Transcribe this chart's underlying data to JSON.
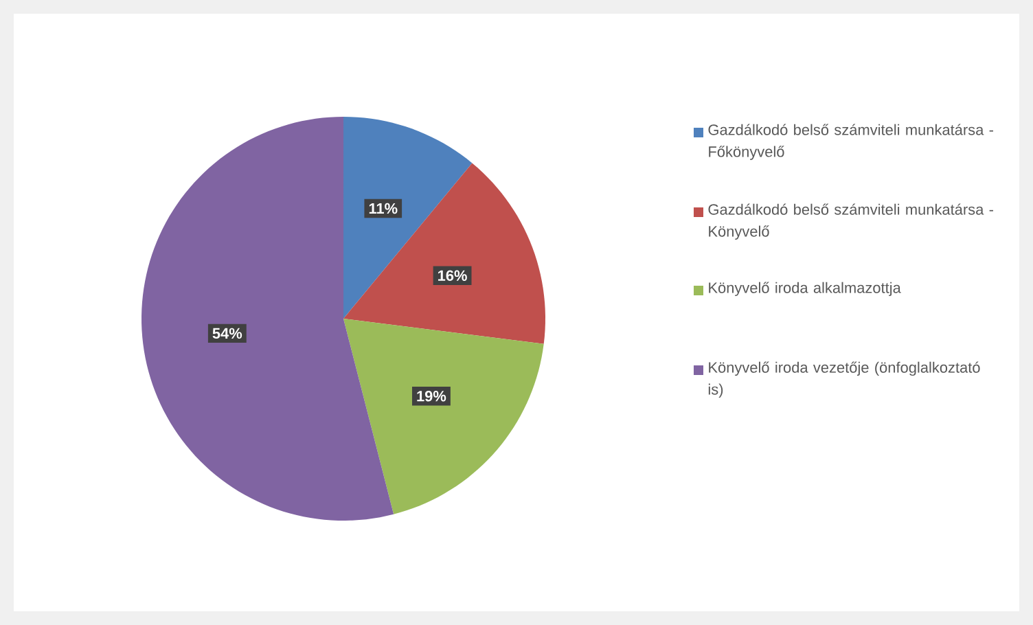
{
  "chart_data": {
    "type": "pie",
    "categories": [
      "Gazdálkodó belső számviteli munkatársa - Főkönyvelő",
      "Gazdálkodó belső számviteli munkatársa - Könyvelő",
      "Könyvelő iroda alkalmazottja",
      "Könyvelő iroda vezetője (önfoglalkoztató is)"
    ],
    "values": [
      11,
      16,
      19,
      54
    ],
    "colors": [
      "#4f81bd",
      "#c0504d",
      "#9bbb59",
      "#8064a2"
    ],
    "value_labels": [
      "11%",
      "16%",
      "19%",
      "54%"
    ],
    "legend": "right"
  }
}
